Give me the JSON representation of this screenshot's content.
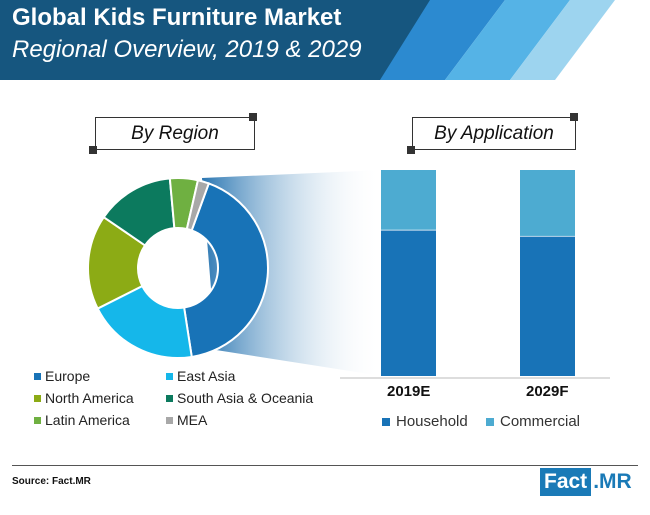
{
  "header": {
    "title_line1": "Global Kids Furniture Market",
    "title_line2": "Regional Overview, 2019 & 2029",
    "colors": {
      "banner_dark": "#16567f",
      "banner_mid": "#2c8ad0",
      "banner_light": "#9dd4ef"
    }
  },
  "region_panel": {
    "label": "By Region"
  },
  "application_panel": {
    "label": "By Application"
  },
  "chart_data": [
    {
      "type": "pie",
      "style": "donut",
      "categories": [
        "Europe",
        "East Asia",
        "North America",
        "South Asia & Oceania",
        "Latin America",
        "MEA"
      ],
      "values": [
        42,
        20,
        17,
        14,
        5,
        2
      ],
      "colors": [
        "#1873b7",
        "#15b7ea",
        "#8cab15",
        "#0c7a5e",
        "#6fb041",
        "#a8a8a8"
      ]
    },
    {
      "type": "bar",
      "stacked": true,
      "percent_stacked": true,
      "categories": [
        "2019E",
        "2029F"
      ],
      "series": [
        {
          "name": "Household",
          "values": [
            71,
            68
          ],
          "color": "#1873b7"
        },
        {
          "name": "Commercial",
          "values": [
            29,
            32
          ],
          "color": "#4dabd1"
        }
      ],
      "ylim": [
        0,
        100
      ],
      "legend_position": "bottom"
    }
  ],
  "footer": {
    "source": "Source: Fact.MR",
    "logo_part1": "Fact",
    "logo_part2": ".MR"
  }
}
